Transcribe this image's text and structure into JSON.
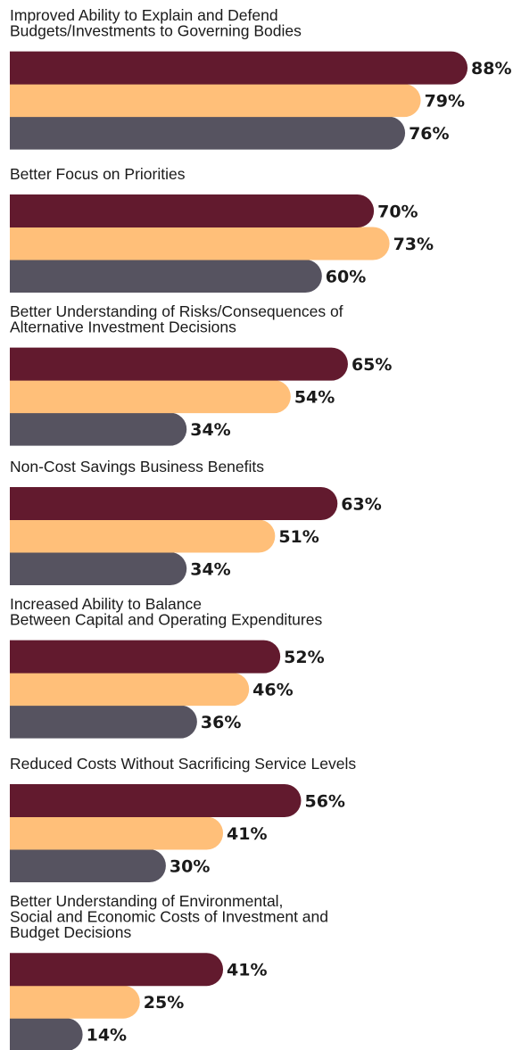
{
  "chart_data": {
    "type": "bar",
    "orientation": "horizontal",
    "grid": false,
    "legend": "none",
    "xlim": [
      0,
      100
    ],
    "value_suffix": "%",
    "colors": [
      "#621A2E",
      "#FFBF79",
      "#565360"
    ],
    "categories": [
      [
        "Improved Ability to Explain and Defend",
        "Budgets/Investments to Governing Bodies"
      ],
      [
        "Better Focus on Priorities"
      ],
      [
        "Better Understanding of Risks/Consequences of",
        "Alternative Investment Decisions"
      ],
      [
        "Non-Cost Savings Business Benefits"
      ],
      [
        "Increased Ability to Balance",
        "Between Capital and Operating Expenditures"
      ],
      [
        "Reduced Costs Without Sacrificing Service Levels"
      ],
      [
        "Better Understanding of Environmental,",
        "Social and Economic Costs of Investment and",
        "Budget Decisions"
      ]
    ],
    "series": [
      {
        "values": [
          88,
          70,
          65,
          63,
          52,
          56,
          41
        ]
      },
      {
        "values": [
          79,
          73,
          54,
          51,
          46,
          41,
          25
        ]
      },
      {
        "values": [
          76,
          60,
          34,
          34,
          36,
          30,
          14
        ]
      }
    ]
  }
}
